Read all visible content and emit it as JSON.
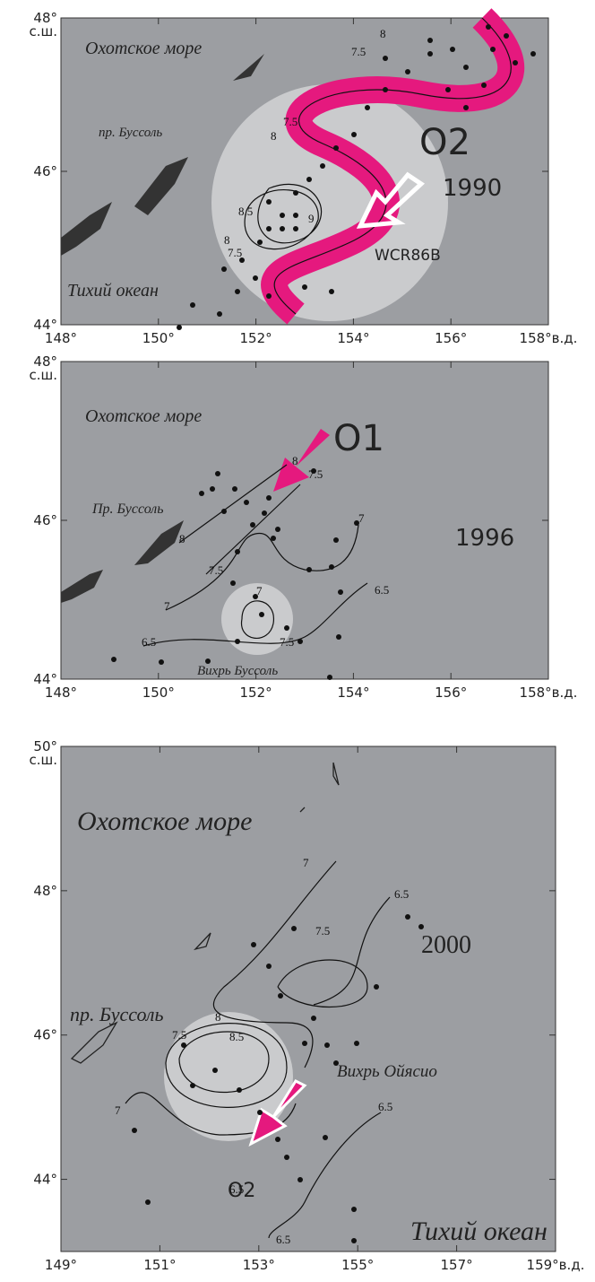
{
  "panels": [
    {
      "year": "1990",
      "lon_ticks": [
        {
          "value": 148,
          "label": "148°"
        },
        {
          "value": 150,
          "label": "150°"
        },
        {
          "value": 152,
          "label": "152°"
        },
        {
          "value": 154,
          "label": "154°"
        },
        {
          "value": 156,
          "label": "156°"
        },
        {
          "value": 158,
          "label": "158°в.д."
        }
      ],
      "lat_ticks": [
        {
          "value": 48,
          "label": "48°"
        },
        {
          "value": 46,
          "label": "46°"
        },
        {
          "value": 44,
          "label": "44°"
        }
      ],
      "lat_unit": "с.ш.",
      "labels": {
        "sea": "Охотское море",
        "ocean": "Тихий океан",
        "strait": "пр. Буссоль",
        "feature": "O2",
        "eddy": "WCR86B"
      },
      "contours": [
        "8",
        "7.5",
        "7.5",
        "8",
        "8.5",
        "9",
        "8",
        "7.5"
      ]
    },
    {
      "year": "1996",
      "lon_ticks": [
        {
          "value": 148,
          "label": "148°"
        },
        {
          "value": 150,
          "label": "150°"
        },
        {
          "value": 152,
          "label": "152°"
        },
        {
          "value": 154,
          "label": "154°"
        },
        {
          "value": 156,
          "label": "156°"
        },
        {
          "value": 158,
          "label": "158°в.д."
        }
      ],
      "lat_ticks": [
        {
          "value": 48,
          "label": "48°"
        },
        {
          "value": 46,
          "label": "46°"
        },
        {
          "value": 44,
          "label": "44°"
        }
      ],
      "lat_unit": "с.ш.",
      "labels": {
        "sea": "Охотское море",
        "strait": "Пр. Буссоль",
        "feature": "O1",
        "eddy": "Вихрь Буссоль"
      },
      "contours": [
        "8",
        "7.5",
        "8",
        "7.5",
        "7",
        "7",
        "6.5",
        "7",
        "7.5",
        "6.5"
      ]
    },
    {
      "year": "2000",
      "lon_ticks": [
        {
          "value": 149,
          "label": "149°"
        },
        {
          "value": 151,
          "label": "151°"
        },
        {
          "value": 153,
          "label": "153°"
        },
        {
          "value": 155,
          "label": "155°"
        },
        {
          "value": 157,
          "label": "157°"
        },
        {
          "value": 159,
          "label": "159°в.д."
        }
      ],
      "lat_ticks": [
        {
          "value": 50,
          "label": "50°"
        },
        {
          "value": 48,
          "label": "48°"
        },
        {
          "value": 46,
          "label": "46°"
        },
        {
          "value": 44,
          "label": "44°"
        }
      ],
      "lat_unit": "с.ш.",
      "labels": {
        "sea": "Охотское море",
        "ocean": "Тихий океан",
        "strait": "пр. Буссоль",
        "feature": "O2",
        "eddy": "Вихрь Ойясио"
      },
      "contours": [
        "7",
        "6.5",
        "7.5",
        "8",
        "8.5",
        "7.5",
        "7",
        "6.5",
        "6.5",
        "6.5"
      ]
    }
  ]
}
